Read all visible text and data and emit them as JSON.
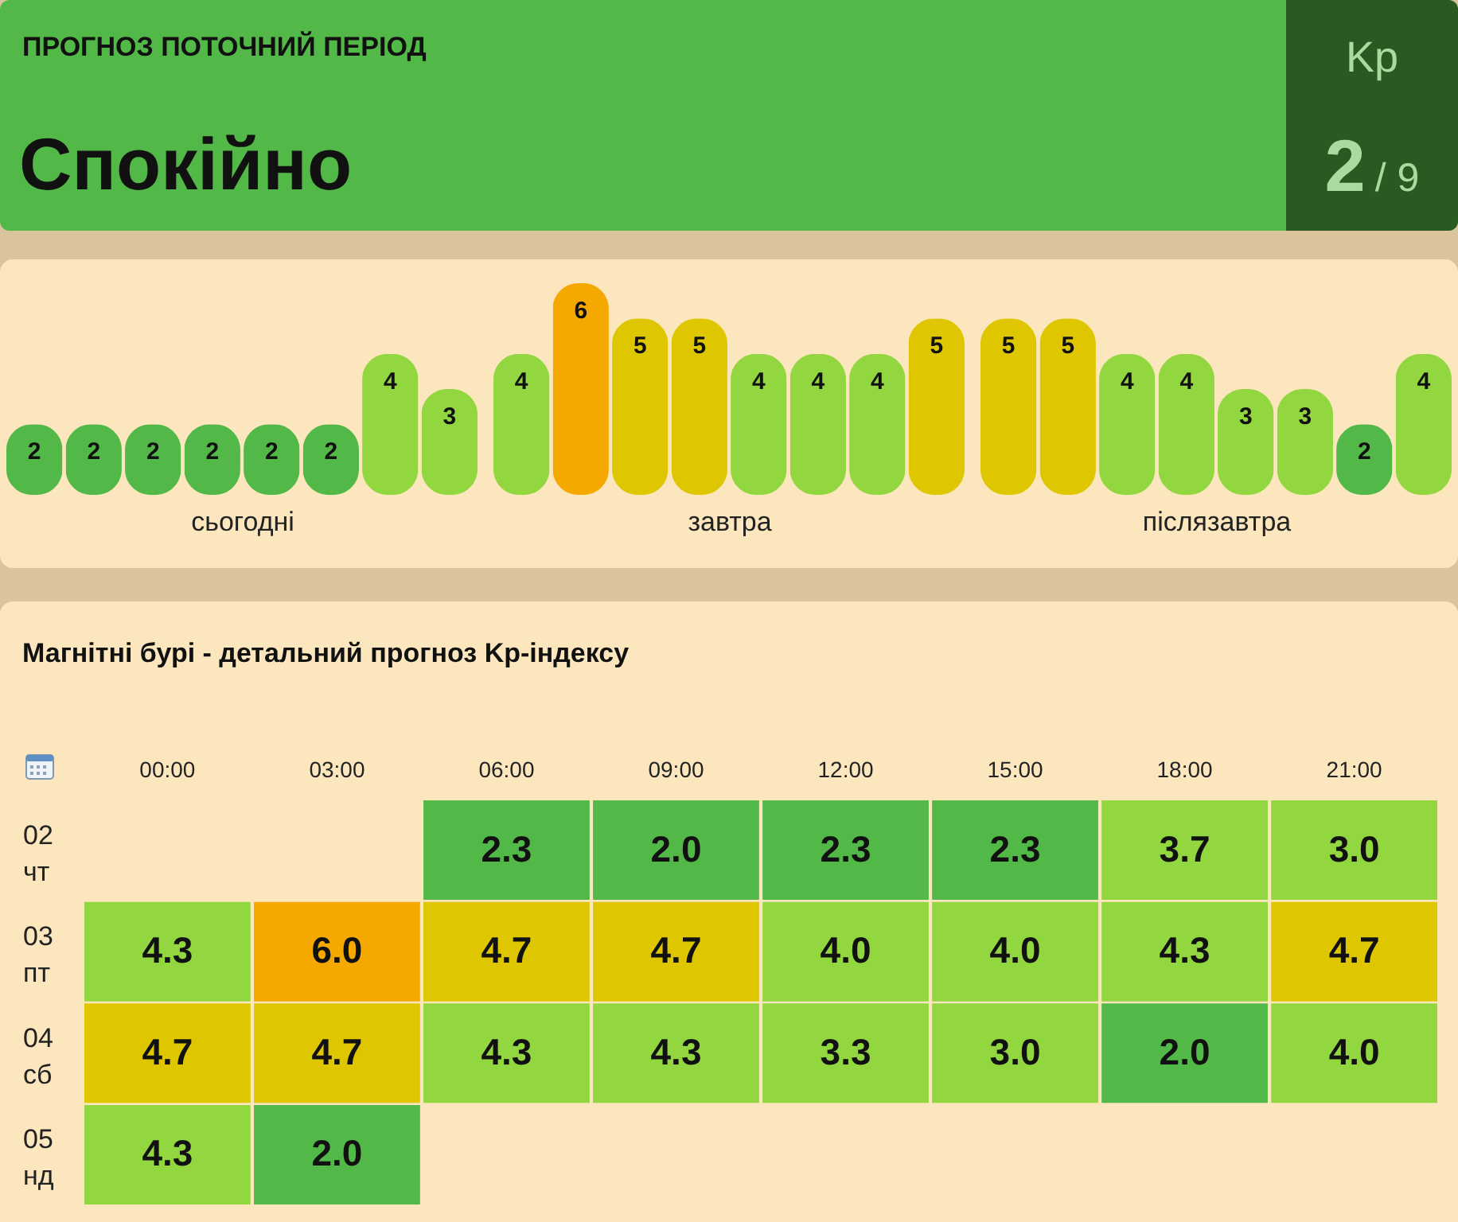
{
  "chart_data": [
    {
      "type": "other",
      "title": "ПРОГНОЗ ПОТОЧНИЙ ПЕРІОД",
      "subtitle": "Спокійно",
      "annotations": [
        "Kp",
        "2",
        "/ 9"
      ]
    },
    {
      "type": "bar",
      "xlabel": "сьогодні",
      "categories": [
        null,
        null,
        null,
        null,
        null,
        null,
        null,
        null
      ],
      "values": [
        2,
        2,
        2,
        2,
        2,
        2,
        4,
        3
      ],
      "colors": [
        "#52b848",
        "#52b848",
        "#52b848",
        "#52b848",
        "#52b848",
        "#52b848",
        "#92d640",
        "#92d640"
      ],
      "data_labels": true,
      "tick_labels": false
    },
    {
      "type": "bar",
      "xlabel": "завтра",
      "categories": [
        null,
        null,
        null,
        null,
        null,
        null,
        null,
        null
      ],
      "values": [
        4,
        6,
        5,
        5,
        4,
        4,
        4,
        5
      ],
      "colors": [
        "#92d640",
        "#f5a800",
        "#dec700",
        "#dec700",
        "#92d640",
        "#92d640",
        "#92d640",
        "#dec700"
      ],
      "data_labels": true,
      "tick_labels": false
    },
    {
      "type": "bar",
      "xlabel": "післязавтра",
      "categories": [
        null,
        null,
        null,
        null,
        null,
        null,
        null,
        null
      ],
      "values": [
        5,
        5,
        4,
        4,
        3,
        3,
        2,
        4
      ],
      "colors": [
        "#dec700",
        "#dec700",
        "#92d640",
        "#92d640",
        "#92d640",
        "#92d640",
        "#52b848",
        "#92d640"
      ],
      "data_labels": true,
      "tick_labels": false
    },
    {
      "type": "heatmap",
      "title": "Магнітні бурі - детальний прогноз Kp-індексу",
      "categories": [
        "00:00",
        "03:00",
        "06:00",
        "09:00",
        "12:00",
        "15:00",
        "18:00",
        "21:00"
      ],
      "y_categories": [
        "02 чт",
        "03 пт",
        "04 сб",
        "05 нд"
      ],
      "cells": [
        [
          null,
          null,
          2.3,
          2,
          2.3,
          2.3,
          3.7,
          3
        ],
        [
          4.3,
          6,
          4.7,
          4.7,
          4,
          4,
          4.3,
          4.7
        ],
        [
          4.7,
          4.7,
          4.3,
          4.3,
          3.3,
          3,
          2,
          4
        ],
        [
          4.3,
          2,
          null,
          null,
          null,
          null,
          null,
          null
        ]
      ],
      "cell_labels": [
        [
          null,
          null,
          "2.3",
          "2.0",
          "2.3",
          "2.3",
          "3.7",
          "3.0"
        ],
        [
          "4.3",
          "6.0",
          "4.7",
          "4.7",
          "4.0",
          "4.0",
          "4.3",
          "4.7"
        ],
        [
          "4.7",
          "4.7",
          "4.3",
          "4.3",
          "3.3",
          "3.0",
          "2.0",
          "4.0"
        ],
        [
          "4.3",
          "2.0",
          null,
          null,
          null,
          null,
          null,
          null
        ]
      ],
      "colors": [
        [
          null,
          null,
          "#52b848",
          "#52b848",
          "#52b848",
          "#52b848",
          "#92d640",
          "#92d640"
        ],
        [
          "#92d640",
          "#f5a800",
          "#dec700",
          "#dec700",
          "#92d640",
          "#92d640",
          "#92d640",
          "#dec700"
        ],
        [
          "#dec700",
          "#dec700",
          "#92d640",
          "#92d640",
          "#92d640",
          "#92d640",
          "#52b848",
          "#92d640"
        ],
        [
          "#92d640",
          "#52b848",
          null,
          null,
          null,
          null,
          null,
          null
        ]
      ]
    }
  ]
}
